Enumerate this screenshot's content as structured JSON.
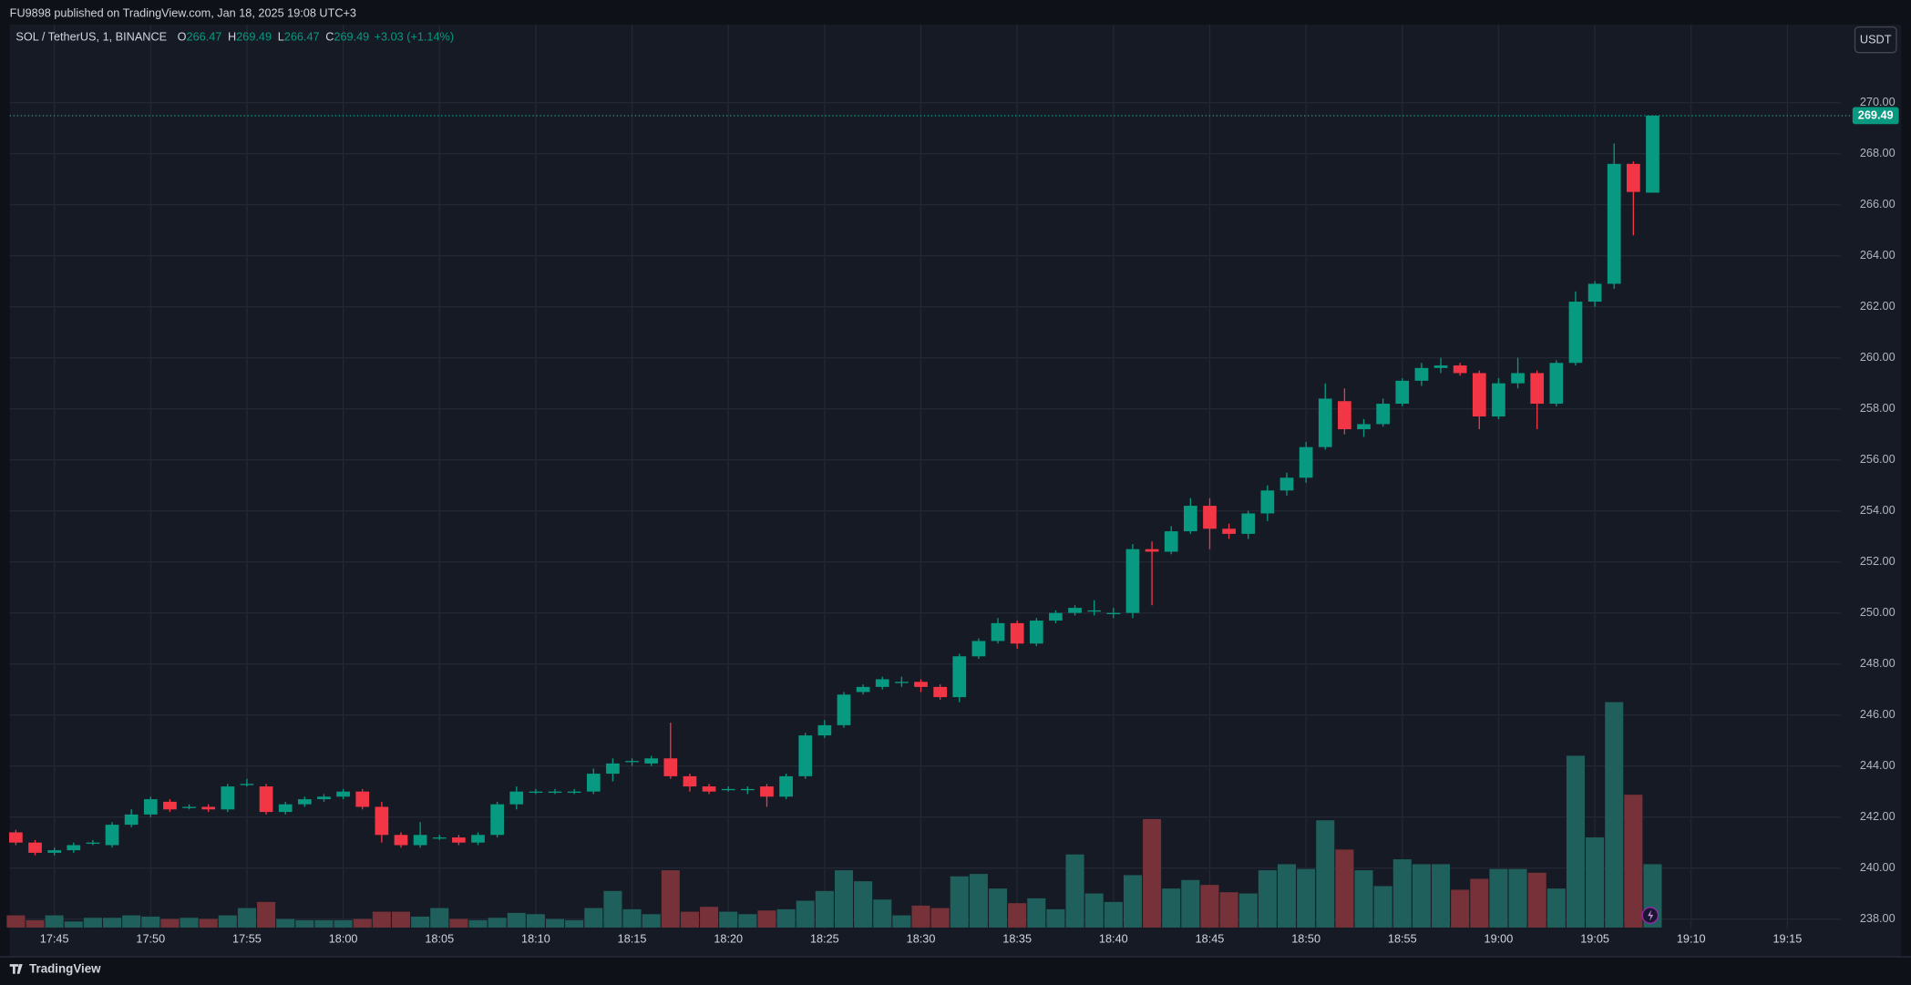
{
  "header": {
    "published": "FU9898 published on TradingView.com, Jan 18, 2025 19:08 UTC+3"
  },
  "footer": {
    "brand": "TradingView"
  },
  "chart_data": {
    "type": "candlestick",
    "symbol": "SOL / TetherUS, 1, BINANCE",
    "legend_ohlc": [
      {
        "label": "O",
        "value": 266.47
      },
      {
        "label": "H",
        "value": 269.49
      },
      {
        "label": "L",
        "value": 266.47
      },
      {
        "label": "C",
        "value": 269.49
      }
    ],
    "legend_change": "+3.03 (+1.14%)",
    "currency": "USDT",
    "up_color": "#089981",
    "down_color": "#f23645",
    "volume_up_color": "#1f5f5c",
    "volume_down_color": "#763238",
    "grid": true,
    "ylim": [
      237.67,
      273.06
    ],
    "yticks": [
      {
        "value": 238,
        "label": "238.00"
      },
      {
        "value": 240,
        "label": "240.00"
      },
      {
        "value": 242,
        "label": "242.00"
      },
      {
        "value": 244,
        "label": "244.00"
      },
      {
        "value": 246,
        "label": "246.00"
      },
      {
        "value": 248,
        "label": "248.00"
      },
      {
        "value": 250,
        "label": "250.00"
      },
      {
        "value": 252,
        "label": "252.00"
      },
      {
        "value": 254,
        "label": "254.00"
      },
      {
        "value": 256,
        "label": "256.00"
      },
      {
        "value": 258,
        "label": "258.00"
      },
      {
        "value": 260,
        "label": "260.00"
      },
      {
        "value": 262,
        "label": "262.00"
      },
      {
        "value": 264,
        "label": "264.00"
      },
      {
        "value": 266,
        "label": "266.00"
      },
      {
        "value": 268,
        "label": "268.00"
      },
      {
        "value": 270,
        "label": "270.00"
      }
    ],
    "xticks": [
      "17:45",
      "17:50",
      "17:55",
      "18:00",
      "18:05",
      "18:10",
      "18:15",
      "18:20",
      "18:25",
      "18:30",
      "18:35",
      "18:40",
      "18:45",
      "18:50",
      "18:55",
      "19:00",
      "19:05",
      "19:10",
      "19:15"
    ],
    "open": [
      241.4,
      241.0,
      240.6,
      240.7,
      241.0,
      240.9,
      241.7,
      242.1,
      242.6,
      242.4,
      242.4,
      242.3,
      243.3,
      243.2,
      242.2,
      242.5,
      242.7,
      242.8,
      243.0,
      242.4,
      241.3,
      240.9,
      241.2,
      241.2,
      241.0,
      241.3,
      242.5,
      243.0,
      243.0,
      243.0,
      243.0,
      243.7,
      244.2,
      244.1,
      244.3,
      243.6,
      243.2,
      243.1,
      243.1,
      243.2,
      242.8,
      243.6,
      245.2,
      245.6,
      246.9,
      247.1,
      247.3,
      247.3,
      247.1,
      246.7,
      248.3,
      248.9,
      249.6,
      248.8,
      249.7,
      250.0,
      250.1,
      250.0,
      250.0,
      252.5,
      252.4,
      253.2,
      254.2,
      253.3,
      253.1,
      253.9,
      254.8,
      255.3,
      256.5,
      258.3,
      257.2,
      257.4,
      258.2,
      259.1,
      259.6,
      259.7,
      259.4,
      257.7,
      259.0,
      259.4,
      258.2,
      259.8,
      262.2,
      262.9,
      267.6,
      266.47
    ],
    "high": [
      241.5,
      241.1,
      240.8,
      241.0,
      241.1,
      241.8,
      242.3,
      242.8,
      242.7,
      242.5,
      242.5,
      243.3,
      243.5,
      243.3,
      242.6,
      242.8,
      242.9,
      243.1,
      243.1,
      242.6,
      241.4,
      241.8,
      241.3,
      241.3,
      241.4,
      242.6,
      243.2,
      243.1,
      243.1,
      243.1,
      243.9,
      244.3,
      244.3,
      244.4,
      245.7,
      243.7,
      243.3,
      243.2,
      243.2,
      243.3,
      243.7,
      245.3,
      245.8,
      246.9,
      247.2,
      247.5,
      247.5,
      247.4,
      247.2,
      248.4,
      249.0,
      249.8,
      249.7,
      249.8,
      250.1,
      250.3,
      250.5,
      250.2,
      252.7,
      252.8,
      253.4,
      254.5,
      254.5,
      253.5,
      254.0,
      255.0,
      255.5,
      256.7,
      259.0,
      258.8,
      257.6,
      258.4,
      259.2,
      259.8,
      260.0,
      259.8,
      259.5,
      259.2,
      260.0,
      259.5,
      259.9,
      262.6,
      263.0,
      268.4,
      267.7,
      269.49
    ],
    "low": [
      240.9,
      240.5,
      240.5,
      240.6,
      240.9,
      240.8,
      241.6,
      242.0,
      242.2,
      242.3,
      242.2,
      242.2,
      243.2,
      242.1,
      242.1,
      242.4,
      242.6,
      242.7,
      242.3,
      241.0,
      240.8,
      240.8,
      241.1,
      240.9,
      240.9,
      241.2,
      242.3,
      242.9,
      242.9,
      242.9,
      242.9,
      243.4,
      244.0,
      244.0,
      243.5,
      243.0,
      242.9,
      243.0,
      242.9,
      242.4,
      242.7,
      243.5,
      245.1,
      245.5,
      246.8,
      247.0,
      247.1,
      246.9,
      246.6,
      246.5,
      248.2,
      248.8,
      248.6,
      248.7,
      249.6,
      249.9,
      249.9,
      249.8,
      249.8,
      250.3,
      252.3,
      253.1,
      252.5,
      252.9,
      252.9,
      253.6,
      254.6,
      255.1,
      256.4,
      257.0,
      256.9,
      257.3,
      258.1,
      258.9,
      259.4,
      259.3,
      257.2,
      257.6,
      258.8,
      257.2,
      258.1,
      259.7,
      262.0,
      262.7,
      264.8,
      266.47
    ],
    "close": [
      241.0,
      240.6,
      240.7,
      240.9,
      241.0,
      241.7,
      242.1,
      242.7,
      242.3,
      242.4,
      242.3,
      243.2,
      243.3,
      242.2,
      242.5,
      242.7,
      242.8,
      243.0,
      242.4,
      241.3,
      240.9,
      241.3,
      241.2,
      241.0,
      241.3,
      242.5,
      243.0,
      243.0,
      243.0,
      243.0,
      243.7,
      244.1,
      244.2,
      244.3,
      243.6,
      243.2,
      243.0,
      243.1,
      243.1,
      242.8,
      243.6,
      245.2,
      245.6,
      246.8,
      247.1,
      247.4,
      247.3,
      247.1,
      246.7,
      248.3,
      248.9,
      249.6,
      248.8,
      249.7,
      250.0,
      250.2,
      250.1,
      250.0,
      252.5,
      252.4,
      253.2,
      254.2,
      253.3,
      253.1,
      253.9,
      254.8,
      255.3,
      256.5,
      258.4,
      257.2,
      257.4,
      258.2,
      259.1,
      259.6,
      259.7,
      259.4,
      257.7,
      259.0,
      259.4,
      258.2,
      259.8,
      262.2,
      262.9,
      267.6,
      266.5,
      269.49
    ],
    "volume": [
      10,
      6,
      10,
      5,
      8,
      8,
      10,
      9,
      7,
      8,
      7,
      10,
      16,
      21,
      7,
      6,
      6,
      6,
      7,
      13,
      13,
      9,
      16,
      7,
      6,
      8,
      12,
      11,
      7,
      6,
      16,
      30,
      15,
      11,
      47,
      13,
      17,
      13,
      11,
      14,
      15,
      22,
      30,
      47,
      38,
      23,
      10,
      18,
      16,
      42,
      44,
      32,
      20,
      24,
      15,
      60,
      28,
      21,
      43,
      89,
      32,
      39,
      35,
      29,
      28,
      47,
      52,
      48,
      88,
      64,
      47,
      34,
      56,
      52,
      52,
      31,
      40,
      48,
      48,
      45,
      32,
      141,
      74,
      185,
      109,
      52
    ]
  }
}
